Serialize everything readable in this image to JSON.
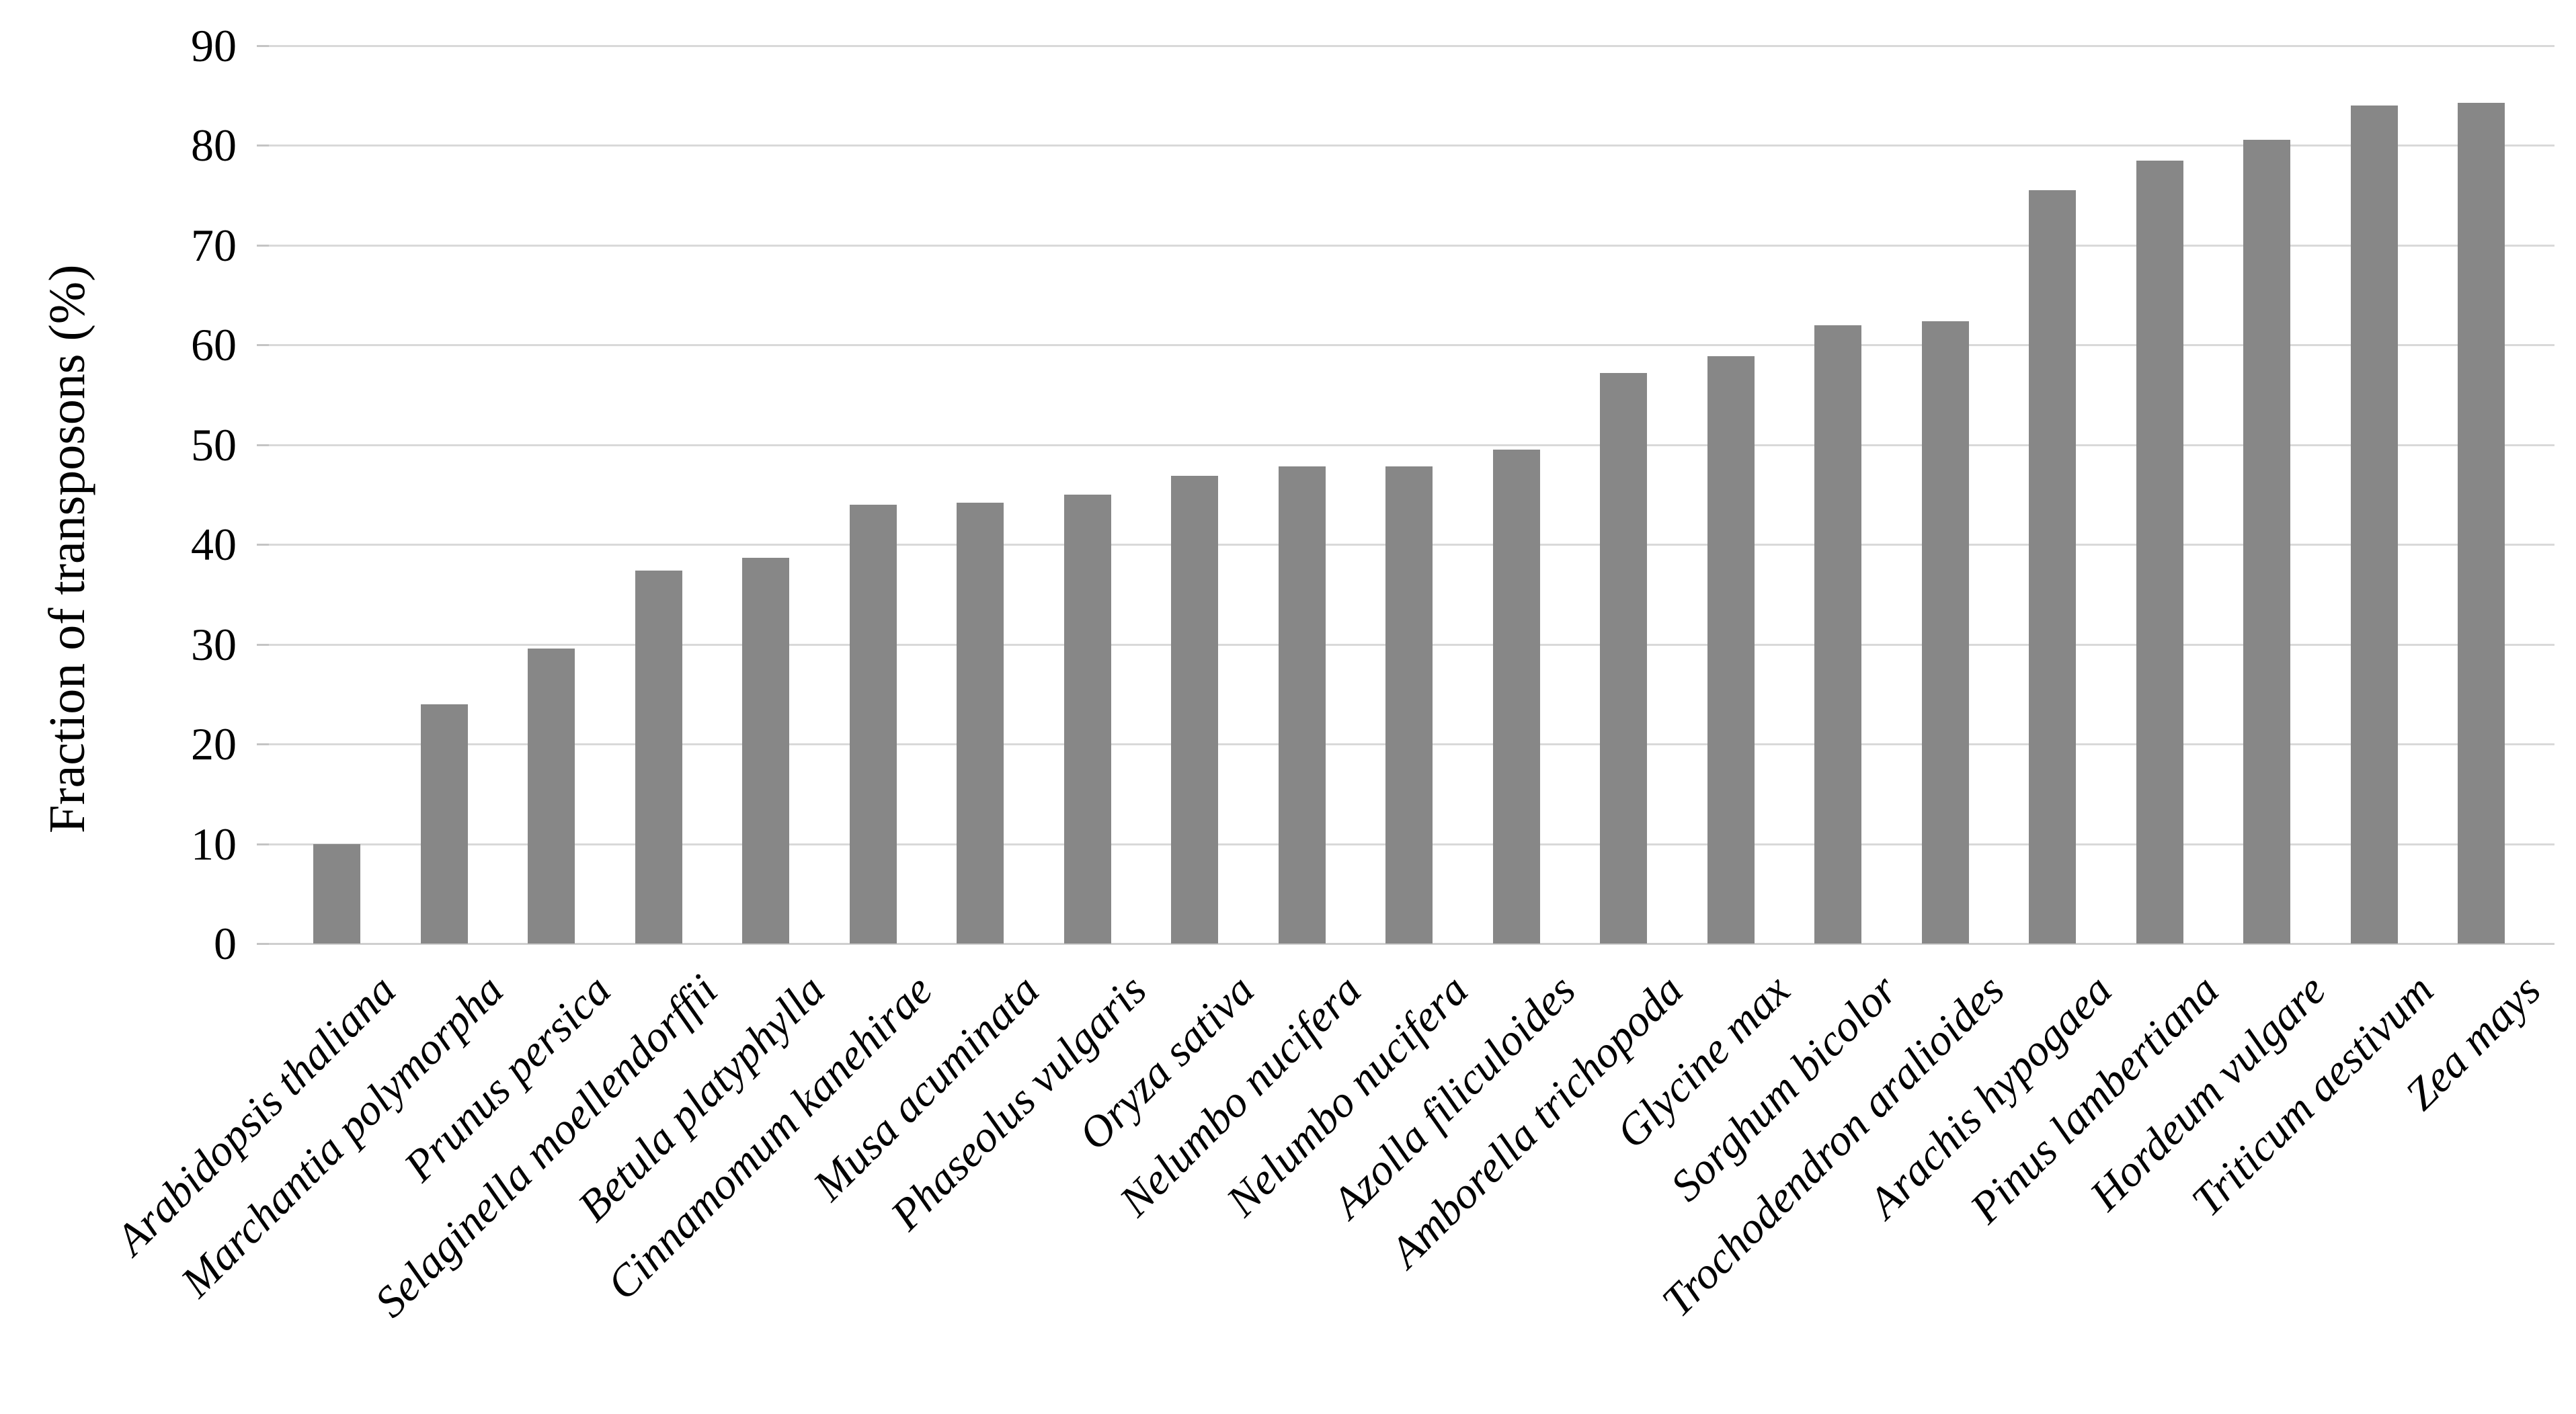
{
  "chart_data": {
    "type": "bar",
    "title": "",
    "xlabel": "",
    "ylabel": "Fraction of transposons (%)",
    "ylim": [
      0,
      90
    ],
    "ytick_interval": 10,
    "ytick_labels": [
      "0",
      "10",
      "20",
      "30",
      "40",
      "50",
      "60",
      "70",
      "80",
      "90"
    ],
    "grid": "horizontal",
    "legend_position": "none",
    "bar_color": "#878787",
    "gridline_color": "#d9d9d9",
    "text_color": "#000000",
    "background_color": "#ffffff",
    "categories": [
      "Arabidopsis thaliana",
      "Marchantia polymorpha",
      "Prunus persica",
      "Selaginella moellendorffii",
      "Betula platyphylla",
      "Cinnamomum kanehirae",
      "Musa acuminata",
      "Phaseolus vulgaris",
      "Oryza sativa",
      "Nelumbo nucifera",
      "Nelumbo nucifera",
      "Azolla filiculoides",
      "Amborella trichopoda",
      "Glycine max",
      "Sorghum bicolor",
      "Trochodendron aralioides",
      "Arachis hypogaea",
      "Pinus lambertiana",
      "Hordeum vulgare",
      "Triticum aestivum",
      "Zea mays"
    ],
    "values": [
      10.0,
      24.0,
      29.6,
      37.4,
      38.7,
      44.0,
      44.2,
      45.0,
      46.9,
      47.8,
      47.8,
      49.5,
      57.2,
      58.9,
      62.0,
      62.4,
      75.5,
      78.5,
      80.6,
      84.0,
      84.3
    ]
  }
}
